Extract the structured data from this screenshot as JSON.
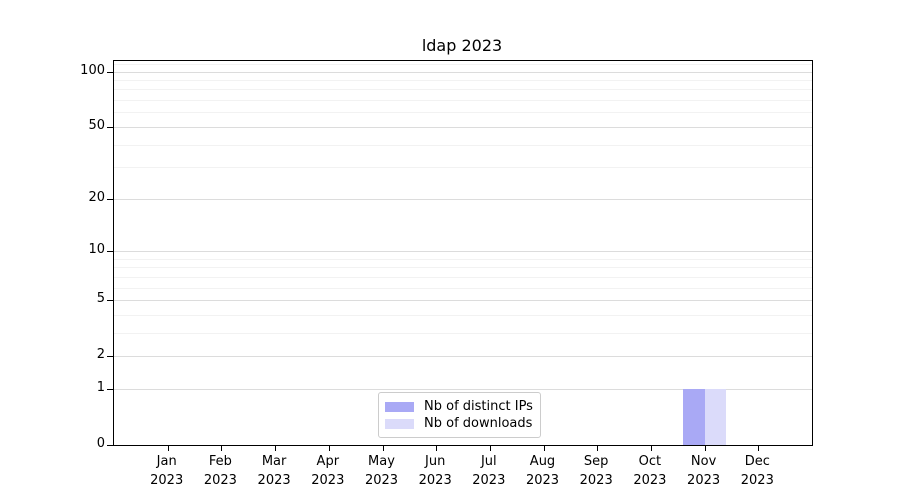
{
  "chart_data": {
    "type": "bar",
    "title": "ldap 2023",
    "months": [
      "Jan",
      "Feb",
      "Mar",
      "Apr",
      "May",
      "Jun",
      "Jul",
      "Aug",
      "Sep",
      "Oct",
      "Nov",
      "Dec"
    ],
    "year": "2023",
    "categories": [
      "Jan 2023",
      "Feb 2023",
      "Mar 2023",
      "Apr 2023",
      "May 2023",
      "Jun 2023",
      "Jul 2023",
      "Aug 2023",
      "Sep 2023",
      "Oct 2023",
      "Nov 2023",
      "Dec 2023"
    ],
    "series": [
      {
        "name": "Nb of distinct IPs",
        "color": "#a9a9f5",
        "values": [
          0,
          0,
          0,
          0,
          0,
          0,
          0,
          0,
          0,
          0,
          1,
          0
        ]
      },
      {
        "name": "Nb of downloads",
        "color": "#dbdbfa",
        "values": [
          0,
          0,
          0,
          0,
          0,
          0,
          0,
          0,
          0,
          0,
          1,
          0
        ]
      }
    ],
    "yscale": "log1p",
    "ylim": [
      0,
      114
    ],
    "y_major_ticks": [
      0,
      1,
      2,
      5,
      10,
      20,
      50,
      100
    ],
    "y_major_tick_labels": [
      "0",
      "1",
      "2",
      "5",
      "10",
      "20",
      "50",
      "100"
    ],
    "y_minor_ticks": [
      3,
      4,
      6,
      7,
      8,
      9,
      30,
      40,
      60,
      70,
      80,
      90,
      110
    ],
    "grid": "horizontal-on",
    "legend_position": "bottom-center",
    "xlabel": "",
    "ylabel": ""
  },
  "colors": {
    "spine": "#000000",
    "grid_major": "#dcdcdc",
    "grid_minor": "#f2f2f2",
    "background": "#ffffff",
    "legend_border": "#cccccc"
  }
}
